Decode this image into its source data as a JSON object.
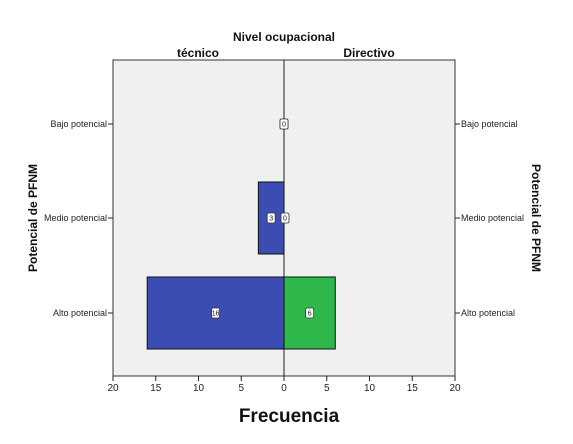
{
  "chart_data": {
    "type": "bar",
    "orientation": "horizontal",
    "layout": "back-to-back population pyramid",
    "title": "Nivel ocupacional",
    "panels": [
      "técnico",
      "Directivo"
    ],
    "xlabel": "Frecuencia",
    "ylabel": "Potencial de PFNM",
    "categories": [
      "Bajo potencial",
      "Medio potencial",
      "Alto potencial"
    ],
    "series": [
      {
        "name": "técnico",
        "values": [
          0,
          3,
          16
        ],
        "color": "#3B4DB3"
      },
      {
        "name": "Directivo",
        "values": [
          0,
          0,
          6
        ],
        "color": "#2EB84B"
      }
    ],
    "data_labels": {
      "técnico": [
        "0",
        "3",
        "16"
      ],
      "Directivo": [
        "0",
        "0",
        "6"
      ]
    },
    "xlim": [
      0,
      20
    ],
    "xticks": [
      20,
      15,
      10,
      5,
      0,
      5,
      10,
      15,
      20
    ],
    "grid": false,
    "background_color": "#F0F0F0"
  }
}
